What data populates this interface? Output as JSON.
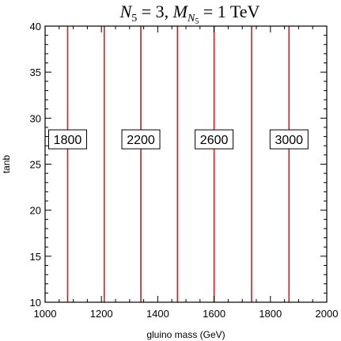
{
  "chart_data": {
    "type": "line",
    "title": {
      "n_sym": "N",
      "n_sub": "5",
      "n_eq": " = 3,  ",
      "m_sym": "M",
      "m_sub": "N",
      "m_subsub": "5",
      "m_eq": " = 1 ",
      "unit": "TeV"
    },
    "xlabel": "gluino mass (GeV)",
    "ylabel": "tanb",
    "xlim": [
      1000,
      2000
    ],
    "ylim": [
      10,
      40
    ],
    "xticks": [
      "1000",
      "1200",
      "1400",
      "1600",
      "1800",
      "2000"
    ],
    "yticks": [
      "10",
      "15",
      "20",
      "25",
      "30",
      "35",
      "40"
    ],
    "line_color": "#cc1f1f",
    "grid": false,
    "series": [
      {
        "x": [
          1080,
          1080
        ],
        "y": [
          10,
          40
        ],
        "label": "1800",
        "label_y": 27.7
      },
      {
        "x": [
          1210,
          1210
        ],
        "y": [
          10,
          40
        ],
        "label": "",
        "label_y": null
      },
      {
        "x": [
          1340,
          1340
        ],
        "y": [
          10,
          40
        ],
        "label": "2200",
        "label_y": 27.7
      },
      {
        "x": [
          1470,
          1470
        ],
        "y": [
          10,
          40
        ],
        "label": "",
        "label_y": null
      },
      {
        "x": [
          1600,
          1600
        ],
        "y": [
          10,
          40
        ],
        "label": "2600",
        "label_y": 27.7
      },
      {
        "x": [
          1733,
          1733
        ],
        "y": [
          10,
          40
        ],
        "label": "",
        "label_y": null
      },
      {
        "x": [
          1866,
          1866
        ],
        "y": [
          10,
          40
        ],
        "label": "3000",
        "label_y": 27.7
      }
    ]
  }
}
